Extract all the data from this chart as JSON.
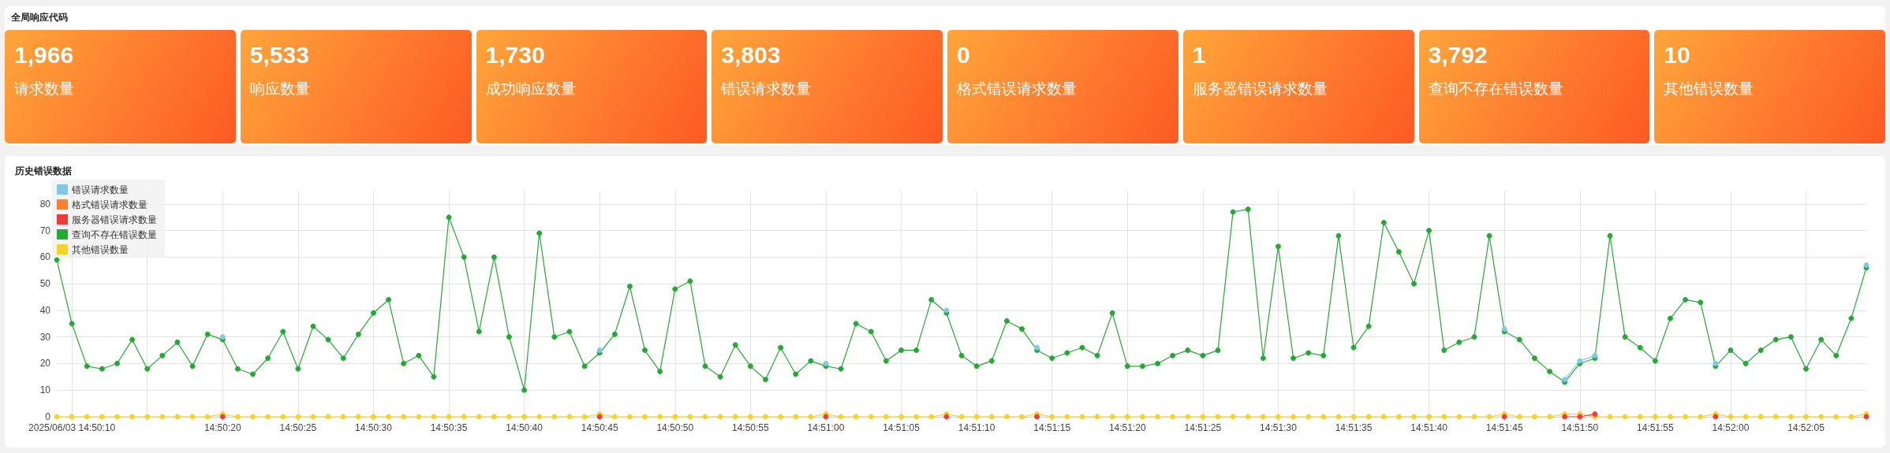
{
  "chart_data": [
    {
      "type": "other",
      "title": "全局响应代码",
      "categories": [
        "请求数量",
        "响应数量",
        "成功响应数量",
        "错误请求数量",
        "格式错误请求数量",
        "服务器错误请求数量",
        "查询不存在错误数量",
        "其他错误数量"
      ],
      "value_labels": [
        "1,966",
        "5,533",
        "1,730",
        "3,803",
        "0",
        "1",
        "3,792",
        "10"
      ]
    },
    {
      "type": "line",
      "title": "历史错误数据",
      "marker": "circle",
      "line_style": "solid",
      "grid": true,
      "legend": "top left",
      "ylim": [
        0,
        85
      ],
      "yticks": [
        0,
        10,
        20,
        30,
        40,
        50,
        60,
        70,
        80
      ],
      "categories": [
        null,
        "2025/06/03 14:50:10",
        null,
        null,
        null,
        null,
        null,
        null,
        null,
        null,
        null,
        "14:50:20",
        null,
        null,
        null,
        null,
        "14:50:25",
        null,
        null,
        null,
        null,
        "14:50:30",
        null,
        null,
        null,
        null,
        "14:50:35",
        null,
        null,
        null,
        null,
        "14:50:40",
        null,
        null,
        null,
        null,
        "14:50:45",
        null,
        null,
        null,
        null,
        "14:50:50",
        null,
        null,
        null,
        null,
        "14:50:55",
        null,
        null,
        null,
        null,
        "14:51:00",
        null,
        null,
        null,
        null,
        "14:51:05",
        null,
        null,
        null,
        null,
        "14:51:10",
        null,
        null,
        null,
        null,
        "14:51:15",
        null,
        null,
        null,
        null,
        "14:51:20",
        null,
        null,
        null,
        null,
        "14:51:25",
        null,
        null,
        null,
        null,
        "14:51:30",
        null,
        null,
        null,
        null,
        "14:51:35",
        null,
        null,
        null,
        null,
        "14:51:40",
        null,
        null,
        null,
        null,
        "14:51:45",
        null,
        null,
        null,
        null,
        "14:51:50",
        null,
        null,
        null,
        null,
        "14:51:55",
        null,
        null,
        null,
        null,
        "14:52:00",
        null,
        null,
        null,
        null,
        "14:52:05",
        null,
        null,
        null,
        null
      ],
      "series": [
        {
          "name": "错误请求数量",
          "color": "#80c8ea",
          "values": [
            null,
            null,
            null,
            null,
            null,
            null,
            null,
            null,
            null,
            null,
            null,
            30,
            null,
            null,
            null,
            null,
            null,
            null,
            null,
            null,
            null,
            null,
            null,
            null,
            null,
            null,
            null,
            null,
            null,
            null,
            null,
            null,
            null,
            null,
            null,
            null,
            25,
            null,
            null,
            null,
            null,
            null,
            null,
            null,
            null,
            null,
            null,
            null,
            null,
            null,
            null,
            20,
            null,
            null,
            null,
            null,
            null,
            null,
            null,
            40,
            null,
            null,
            null,
            null,
            null,
            26,
            null,
            null,
            null,
            null,
            null,
            null,
            null,
            null,
            null,
            null,
            null,
            null,
            null,
            null,
            null,
            null,
            null,
            null,
            null,
            null,
            null,
            null,
            null,
            null,
            null,
            null,
            null,
            null,
            null,
            null,
            33,
            null,
            null,
            null,
            14,
            21,
            23,
            null,
            null,
            null,
            null,
            null,
            null,
            null,
            20,
            null,
            null,
            null,
            null,
            null,
            null,
            null,
            null,
            null,
            57
          ]
        },
        {
          "name": "格式错误请求数量",
          "color": "#ff7f2a",
          "values": [
            null,
            null,
            null,
            null,
            null,
            null,
            null,
            null,
            null,
            null,
            null,
            null,
            null,
            null,
            null,
            null,
            null,
            null,
            null,
            null,
            null,
            null,
            null,
            null,
            null,
            null,
            null,
            null,
            null,
            null,
            null,
            null,
            null,
            null,
            null,
            null,
            null,
            null,
            null,
            null,
            null,
            null,
            null,
            null,
            null,
            null,
            null,
            null,
            null,
            null,
            null,
            null,
            null,
            null,
            null,
            null,
            null,
            null,
            null,
            null,
            null,
            null,
            null,
            null,
            null,
            null,
            null,
            null,
            null,
            null,
            null,
            null,
            null,
            null,
            null,
            null,
            null,
            null,
            null,
            null,
            null,
            null,
            null,
            null,
            null,
            null,
            null,
            null,
            null,
            null,
            null,
            null,
            null,
            null,
            null,
            null,
            null,
            null,
            null,
            null,
            null,
            null,
            null,
            null,
            null,
            null,
            null,
            null,
            null,
            null,
            null,
            null,
            null,
            null,
            null,
            null,
            null,
            null,
            null,
            null,
            null
          ]
        },
        {
          "name": "服务器错误请求数量",
          "color": "#ee3b3b",
          "values": [
            null,
            null,
            null,
            null,
            null,
            null,
            null,
            null,
            null,
            null,
            null,
            0,
            null,
            null,
            null,
            null,
            null,
            null,
            null,
            null,
            null,
            null,
            null,
            null,
            null,
            null,
            null,
            null,
            null,
            null,
            null,
            null,
            null,
            null,
            null,
            null,
            0,
            null,
            null,
            null,
            null,
            null,
            null,
            null,
            null,
            null,
            null,
            null,
            null,
            null,
            null,
            0,
            null,
            null,
            null,
            null,
            null,
            null,
            null,
            0,
            null,
            null,
            null,
            null,
            null,
            0,
            null,
            null,
            null,
            null,
            null,
            null,
            null,
            null,
            null,
            null,
            null,
            null,
            null,
            null,
            null,
            null,
            null,
            null,
            null,
            null,
            null,
            null,
            null,
            null,
            null,
            null,
            null,
            null,
            null,
            null,
            0,
            null,
            null,
            null,
            0,
            0,
            1,
            null,
            null,
            null,
            null,
            null,
            null,
            null,
            0,
            null,
            null,
            null,
            null,
            null,
            null,
            null,
            null,
            null,
            0
          ]
        },
        {
          "name": "查询不存在错误数量",
          "color": "#22aa33",
          "values": [
            59,
            35,
            19,
            18,
            20,
            29,
            18,
            23,
            28,
            19,
            31,
            29,
            18,
            16,
            22,
            32,
            18,
            34,
            29,
            22,
            31,
            39,
            44,
            20,
            23,
            15,
            75,
            60,
            32,
            60,
            30,
            10,
            69,
            30,
            32,
            19,
            24,
            31,
            49,
            25,
            17,
            48,
            51,
            19,
            15,
            27,
            19,
            14,
            26,
            16,
            21,
            19,
            18,
            35,
            32,
            21,
            25,
            25,
            44,
            39,
            23,
            19,
            21,
            36,
            33,
            25,
            22,
            24,
            26,
            23,
            39,
            19,
            19,
            20,
            23,
            25,
            23,
            25,
            77,
            78,
            22,
            64,
            22,
            24,
            23,
            68,
            26,
            34,
            73,
            62,
            50,
            70,
            25,
            28,
            30,
            68,
            32,
            29,
            22,
            17,
            13,
            20,
            22,
            68,
            30,
            26,
            21,
            37,
            44,
            43,
            19,
            25,
            20,
            25,
            29,
            30,
            18,
            29,
            23,
            37,
            56
          ]
        },
        {
          "name": "其他错误数量",
          "color": "#f5d327",
          "values": [
            0,
            0,
            0,
            0,
            0,
            0,
            0,
            0,
            0,
            0,
            0,
            1,
            0,
            0,
            0,
            0,
            0,
            0,
            0,
            0,
            0,
            0,
            0,
            0,
            0,
            0,
            0,
            0,
            0,
            0,
            0,
            0,
            0,
            0,
            0,
            0,
            1,
            0,
            0,
            0,
            0,
            0,
            0,
            0,
            0,
            0,
            0,
            0,
            0,
            0,
            0,
            1,
            0,
            0,
            0,
            0,
            0,
            0,
            0,
            1,
            0,
            0,
            0,
            0,
            0,
            1,
            0,
            0,
            0,
            0,
            0,
            0,
            0,
            0,
            0,
            0,
            0,
            0,
            0,
            0,
            0,
            0,
            0,
            0,
            0,
            0,
            0,
            0,
            0,
            0,
            0,
            0,
            0,
            0,
            0,
            0,
            1,
            0,
            0,
            0,
            1,
            1,
            0,
            0,
            0,
            0,
            0,
            0,
            0,
            0,
            1,
            0,
            0,
            0,
            0,
            0,
            0,
            0,
            0,
            0,
            1
          ]
        }
      ]
    }
  ]
}
